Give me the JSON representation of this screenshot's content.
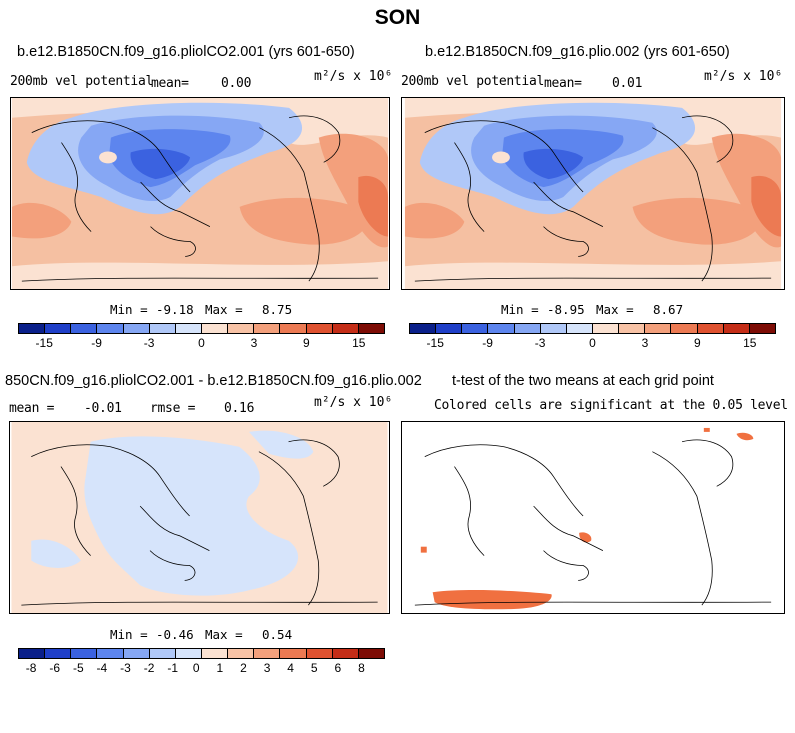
{
  "title": "SON",
  "panels": {
    "p1": {
      "title": "b.e12.B1850CN.f09_g16.pliolCO2.001 (yrs 601-650)",
      "field": "200mb vel potential",
      "mean_label": "mean=",
      "mean_value": "0.00",
      "units": "m²/s x 10⁶",
      "min_label": "Min =",
      "min_value": "-9.18",
      "max_label": "Max =",
      "max_value": "8.75"
    },
    "p2": {
      "title": "b.e12.B1850CN.f09_g16.plio.002 (yrs 601-650)",
      "field": "200mb vel potential",
      "mean_label": "mean=",
      "mean_value": "0.01",
      "units": "m²/s x 10⁶",
      "min_label": "Min =",
      "min_value": "-8.95",
      "max_label": "Max =",
      "max_value": "8.67"
    },
    "p3": {
      "title": "850CN.f09_g16.pliolCO2.001 - b.e12.B1850CN.f09_g16.plio.002",
      "mean_label": "mean =",
      "mean_value": "-0.01",
      "rmse_label": "rmse =",
      "rmse_value": "0.16",
      "units": "m²/s x 10⁶",
      "min_label": "Min =",
      "min_value": "-0.46",
      "max_label": "Max =",
      "max_value": "0.54"
    },
    "p4": {
      "title": "t-test of the two means at each grid point",
      "subtitle": "Colored cells are significant at the 0.05 level"
    }
  },
  "colorbar_top": {
    "colors": [
      "#0a1f8a",
      "#1f3fc8",
      "#3b62e0",
      "#5d85ee",
      "#86a7f4",
      "#b0c8f8",
      "#d6e4fb",
      "#fbe2d2",
      "#f8c3a6",
      "#f3a07c",
      "#ec7a53",
      "#df5230",
      "#c42d17",
      "#7d0c05"
    ],
    "ticks": [
      "-15",
      "-9",
      "-3",
      "0",
      "3",
      "9",
      "15"
    ]
  },
  "colorbar_bottom": {
    "colors": [
      "#0a1f8a",
      "#1f3fc8",
      "#3b62e0",
      "#5d85ee",
      "#86a7f4",
      "#b0c8f8",
      "#d6e4fb",
      "#fbe2d2",
      "#f8c3a6",
      "#f3a07c",
      "#ec7a53",
      "#df5230",
      "#c42d17",
      "#7d0c05"
    ],
    "ticks": [
      "-8",
      "-6",
      "-5",
      "-4",
      "-3",
      "-2",
      "-1",
      "0",
      "1",
      "2",
      "3",
      "4",
      "5",
      "6",
      "8"
    ]
  },
  "colors": {
    "ttest_fill": "#f07040",
    "diff_neg": "#d6e4fb",
    "diff_pos": "#fbe2d2"
  }
}
